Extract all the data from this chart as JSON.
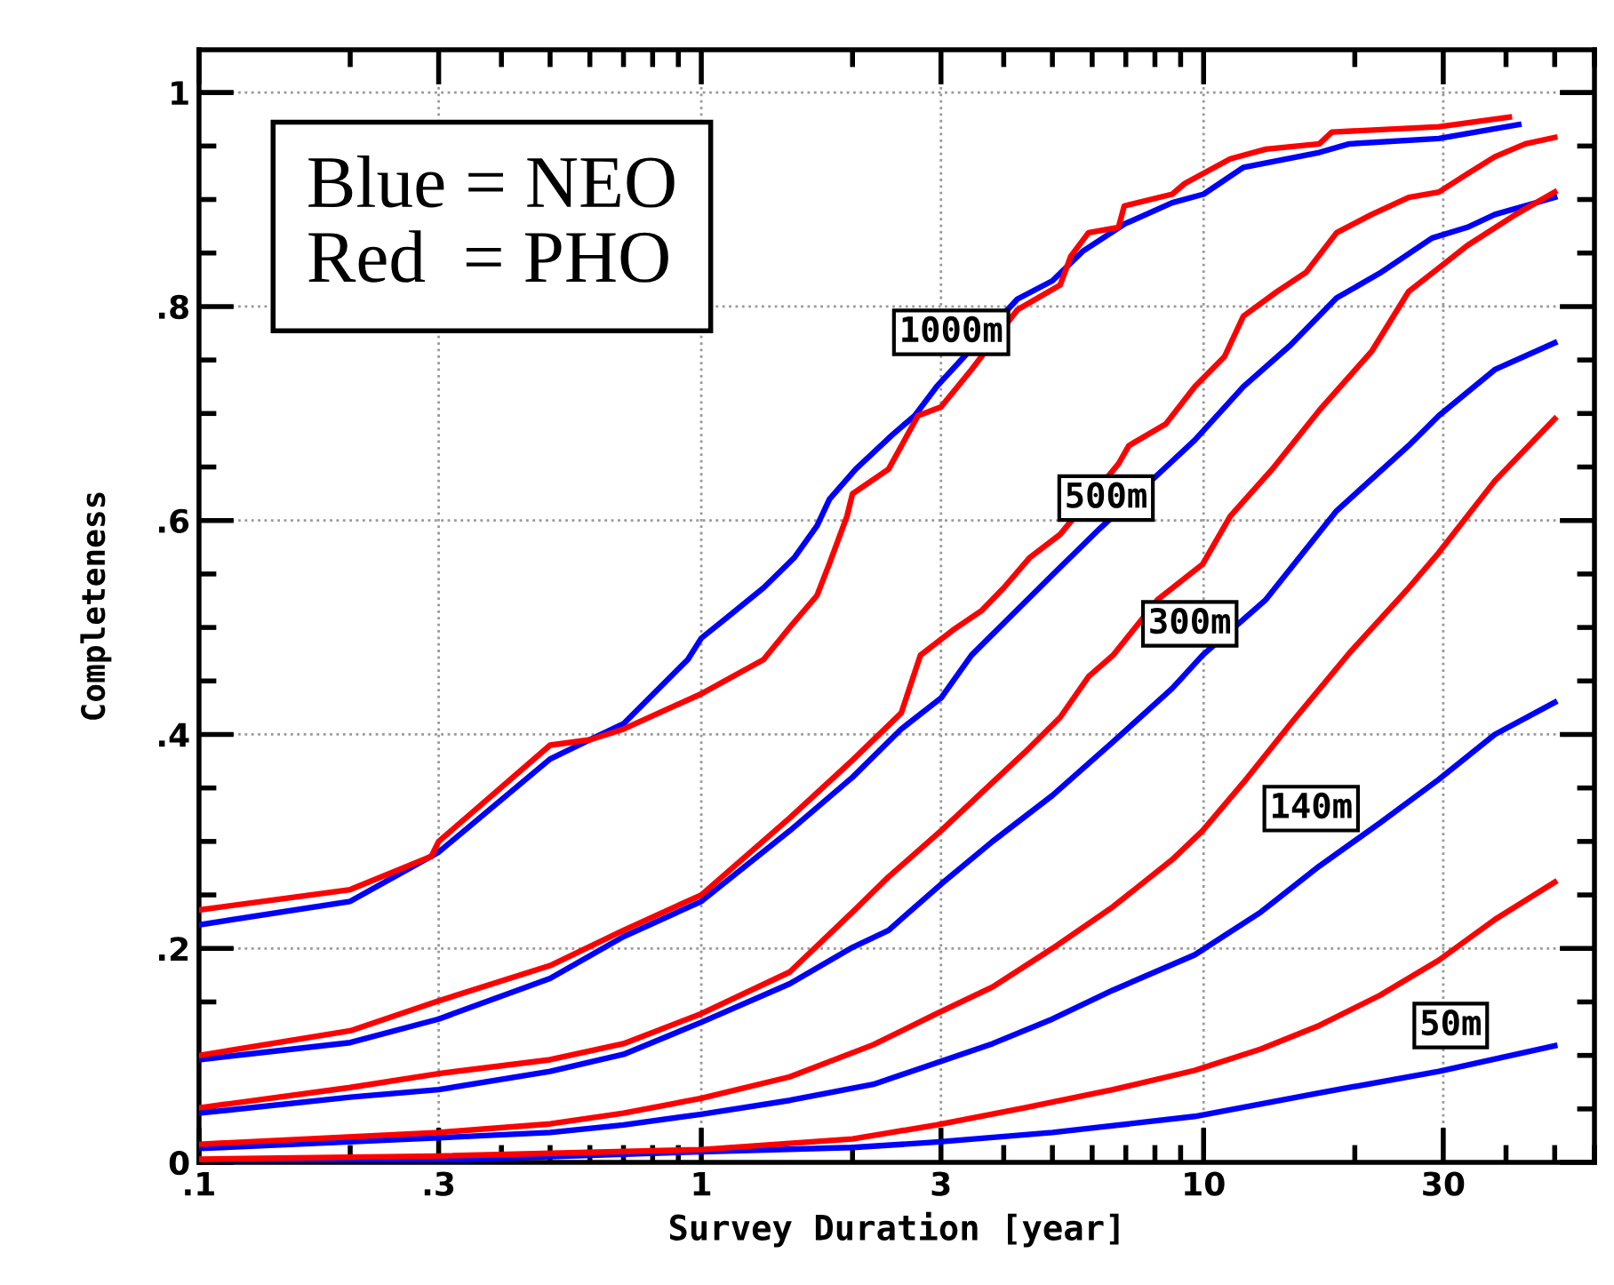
{
  "chart_data": {
    "type": "line",
    "xlabel": "Survey Duration [year]",
    "ylabel": "Completeness",
    "log": "x",
    "xlim": [
      0.1,
      60
    ],
    "ylim": [
      0,
      1.04
    ],
    "xticks": [
      {
        "value": 0.1,
        "label": ".1"
      },
      {
        "value": 0.3,
        "label": ".3"
      },
      1,
      3,
      10,
      30
    ],
    "yticks": [
      0,
      {
        "value": 0.2,
        "label": ".2"
      },
      {
        "value": 0.4,
        "label": ".4"
      },
      {
        "value": 0.6,
        "label": ".6"
      },
      {
        "value": 0.8,
        "label": ".8"
      },
      1
    ],
    "grid": true,
    "marker": "none",
    "line_style": "solid",
    "annotations": [
      "Blue = NEO\nRed  = PHO",
      "1000m",
      "500m",
      "300m",
      "140m",
      "50m"
    ],
    "series": [
      {
        "color": "#0000ff",
        "x": [
          0.1,
          0.2,
          0.3,
          0.5,
          0.6,
          0.7,
          0.94,
          1.0,
          1.13,
          1.33,
          1.53,
          1.7,
          1.8,
          2.03,
          2.4,
          2.66,
          2.94,
          3.26,
          4.26,
          5.0,
          5.76,
          6.95,
          8.66,
          10,
          12,
          17,
          19.5,
          29.4,
          42.4
        ],
        "values": [
          0.222,
          0.244,
          0.29,
          0.377,
          0.395,
          0.41,
          0.47,
          0.49,
          0.51,
          0.537,
          0.565,
          0.595,
          0.62,
          0.648,
          0.68,
          0.698,
          0.725,
          0.748,
          0.807,
          0.824,
          0.852,
          0.877,
          0.897,
          0.905,
          0.93,
          0.944,
          0.952,
          0.957,
          0.97
        ]
      },
      {
        "color": "#ff0000",
        "x": [
          0.1,
          0.2,
          0.29,
          0.3,
          0.5,
          0.6,
          0.7,
          1.0,
          1.33,
          1.5,
          1.7,
          1.8,
          1.95,
          2.0,
          2.36,
          2.7,
          3.0,
          3.45,
          4.26,
          5.18,
          5.44,
          5.9,
          6.77,
          6.95,
          8.66,
          9.17,
          11.3,
          13.3,
          17,
          18,
          29.4,
          40.6
        ],
        "values": [
          0.236,
          0.255,
          0.286,
          0.3,
          0.39,
          0.395,
          0.405,
          0.438,
          0.47,
          0.5,
          0.53,
          0.56,
          0.604,
          0.625,
          0.648,
          0.698,
          0.706,
          0.741,
          0.797,
          0.82,
          0.847,
          0.869,
          0.874,
          0.894,
          0.905,
          0.915,
          0.938,
          0.947,
          0.952,
          0.963,
          0.968,
          0.977
        ]
      },
      {
        "color": "#0000ff",
        "x": [
          0.1,
          0.2,
          0.3,
          0.5,
          0.7,
          1.0,
          1.5,
          2.0,
          2.5,
          3.0,
          3.45,
          4.1,
          5.0,
          6.2,
          9.6,
          12,
          14.9,
          18.4,
          22.4,
          28.5,
          33.5,
          38,
          50
        ],
        "values": [
          0.096,
          0.112,
          0.134,
          0.172,
          0.211,
          0.244,
          0.31,
          0.36,
          0.405,
          0.434,
          0.474,
          0.509,
          0.549,
          0.592,
          0.675,
          0.725,
          0.764,
          0.808,
          0.831,
          0.864,
          0.874,
          0.886,
          0.902
        ]
      },
      {
        "color": "#ff0000",
        "x": [
          0.1,
          0.2,
          0.3,
          0.5,
          0.7,
          1.0,
          1.5,
          2.0,
          2.5,
          2.73,
          3.2,
          3.62,
          4.0,
          4.5,
          5.18,
          6.77,
          7.1,
          8.4,
          9.6,
          11,
          12,
          14,
          16,
          18.4,
          21.6,
          25.6,
          29.4,
          33.5,
          38,
          43.7,
          50
        ],
        "values": [
          0.1,
          0.123,
          0.151,
          0.184,
          0.217,
          0.25,
          0.322,
          0.376,
          0.42,
          0.474,
          0.499,
          0.516,
          0.537,
          0.565,
          0.587,
          0.653,
          0.67,
          0.69,
          0.725,
          0.753,
          0.791,
          0.814,
          0.832,
          0.869,
          0.886,
          0.902,
          0.907,
          0.924,
          0.94,
          0.952,
          0.958
        ]
      },
      {
        "color": "#0000ff",
        "x": [
          0.1,
          0.2,
          0.3,
          0.5,
          0.7,
          1.0,
          1.5,
          2.0,
          2.36,
          3.0,
          3.8,
          5.0,
          6.6,
          8.66,
          9.95,
          13.3,
          18.4,
          25.6,
          29.4,
          38,
          50
        ],
        "values": [
          0.046,
          0.061,
          0.068,
          0.085,
          0.101,
          0.131,
          0.167,
          0.201,
          0.217,
          0.26,
          0.3,
          0.343,
          0.393,
          0.443,
          0.474,
          0.526,
          0.609,
          0.67,
          0.698,
          0.741,
          0.766
        ]
      },
      {
        "color": "#ff0000",
        "x": [
          0.1,
          0.2,
          0.3,
          0.5,
          0.7,
          1.0,
          1.5,
          2.0,
          2.36,
          3.0,
          3.7,
          4.4,
          5.18,
          5.9,
          6.6,
          8.1,
          9.95,
          11.3,
          13.7,
          17,
          21.6,
          25.6,
          29.4,
          33.5,
          41.8,
          50
        ],
        "values": [
          0.051,
          0.07,
          0.083,
          0.096,
          0.111,
          0.139,
          0.178,
          0.234,
          0.267,
          0.31,
          0.35,
          0.383,
          0.416,
          0.454,
          0.474,
          0.526,
          0.559,
          0.604,
          0.648,
          0.703,
          0.758,
          0.814,
          0.836,
          0.857,
          0.886,
          0.907
        ]
      },
      {
        "color": "#0000ff",
        "x": [
          0.1,
          0.3,
          0.5,
          0.7,
          1.0,
          1.5,
          2.2,
          2.94,
          3.8,
          5.0,
          6.6,
          9.6,
          13,
          17,
          22.4,
          29.4,
          38,
          50
        ],
        "values": [
          0.013,
          0.023,
          0.028,
          0.035,
          0.045,
          0.058,
          0.073,
          0.093,
          0.111,
          0.134,
          0.161,
          0.194,
          0.234,
          0.277,
          0.317,
          0.358,
          0.4,
          0.43
        ]
      },
      {
        "color": "#ff0000",
        "x": [
          0.1,
          0.3,
          0.5,
          0.7,
          1.0,
          1.5,
          2.2,
          2.94,
          3.8,
          5.0,
          6.6,
          8.66,
          9.95,
          12,
          14.9,
          19.5,
          25.6,
          29.4,
          38,
          50
        ],
        "values": [
          0.017,
          0.028,
          0.036,
          0.046,
          0.06,
          0.08,
          0.11,
          0.139,
          0.164,
          0.2,
          0.239,
          0.283,
          0.31,
          0.355,
          0.41,
          0.476,
          0.537,
          0.57,
          0.637,
          0.695
        ]
      },
      {
        "color": "#0000ff",
        "x": [
          0.1,
          0.3,
          1.0,
          2.0,
          2.94,
          5.0,
          9.6,
          17,
          29.4,
          50
        ],
        "values": [
          0.0,
          0.002,
          0.01,
          0.014,
          0.019,
          0.028,
          0.043,
          0.065,
          0.085,
          0.109
        ]
      },
      {
        "color": "#ff0000",
        "x": [
          0.1,
          0.3,
          1.0,
          2.0,
          2.94,
          4.4,
          6.6,
          9.6,
          13,
          17,
          22.4,
          29.4,
          38,
          50
        ],
        "values": [
          0.003,
          0.006,
          0.012,
          0.022,
          0.035,
          0.051,
          0.068,
          0.086,
          0.106,
          0.128,
          0.156,
          0.189,
          0.227,
          0.262
        ]
      }
    ]
  }
}
